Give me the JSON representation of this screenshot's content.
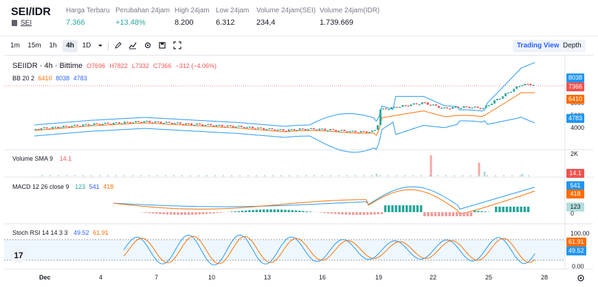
{
  "header": {
    "pair": "SEI/IDR",
    "sub_link": "SEI",
    "stats": [
      {
        "label": "Harga Terbaru",
        "value": "7.366",
        "tone": "green"
      },
      {
        "label": "Perubahan 24jam",
        "value": "+13.48%",
        "tone": "green"
      },
      {
        "label": "High 24jam",
        "value": "8.200",
        "tone": "normal"
      },
      {
        "label": "Low 24jam",
        "value": "6.312",
        "tone": "normal"
      },
      {
        "label": "Volume 24jam(SEI)",
        "value": "234,4",
        "tone": "normal"
      },
      {
        "label": "Volume 24jam(IDR)",
        "value": "1.739.669",
        "tone": "normal"
      }
    ]
  },
  "toolbar": {
    "intervals": [
      "1m",
      "15m",
      "1h",
      "4h",
      "1D"
    ],
    "active_interval": "4h",
    "icons": [
      "chevron-down-icon",
      "draw-icon",
      "indicators-icon",
      "settings-icon",
      "snapshot-icon",
      "fullscreen-icon"
    ],
    "views": [
      "Trading View",
      "Depth"
    ],
    "active_view": "Trading View"
  },
  "legend": {
    "symbol": "SEIIDR · 4h · Bittime",
    "open": "O7696",
    "high": "H7822",
    "low": "L7332",
    "close": "C7366",
    "change": "−312 (−4.06%)",
    "bb_name": "BB 20 2",
    "bb_basis": "6410",
    "bb_upper": "8038",
    "bb_lower": "4783",
    "vol_name": "Volume SMA 9",
    "vol_value": "14.1",
    "macd_name": "MACD 12 26 close 9",
    "macd_hist": "123",
    "macd_line": "541",
    "macd_signal": "418",
    "stoch_name": "Stoch RSI 14 14 3 3",
    "stoch_k": "49.52",
    "stoch_d": "61.91"
  },
  "axis": {
    "price_labels": [
      "6000",
      "5000",
      "4000"
    ],
    "price_tags": {
      "upper": "8038",
      "last": "7366",
      "basis": "6410",
      "lower": "4783"
    },
    "volume_label": "2K",
    "volume_tag": "14.1",
    "macd_tags": {
      "line": "541",
      "signal": "418",
      "hist": "123",
      "zero": "0"
    },
    "stoch_labels": [
      "100.00",
      "0.00"
    ],
    "stoch_tags": {
      "d": "61.91",
      "k": "49.52"
    },
    "dates": [
      "Dec",
      "4",
      "7",
      "10",
      "13",
      "16",
      "19",
      "22",
      "25",
      "28"
    ]
  },
  "colors": {
    "up": "#26a69a",
    "down": "#ef5350",
    "bb_basis": "#ff6d00",
    "bb_band": "#2196f3",
    "macd_line": "#2196f3",
    "macd_signal": "#ff6d00",
    "stoch_k": "#2196f3",
    "stoch_d": "#ff6d00"
  }
}
